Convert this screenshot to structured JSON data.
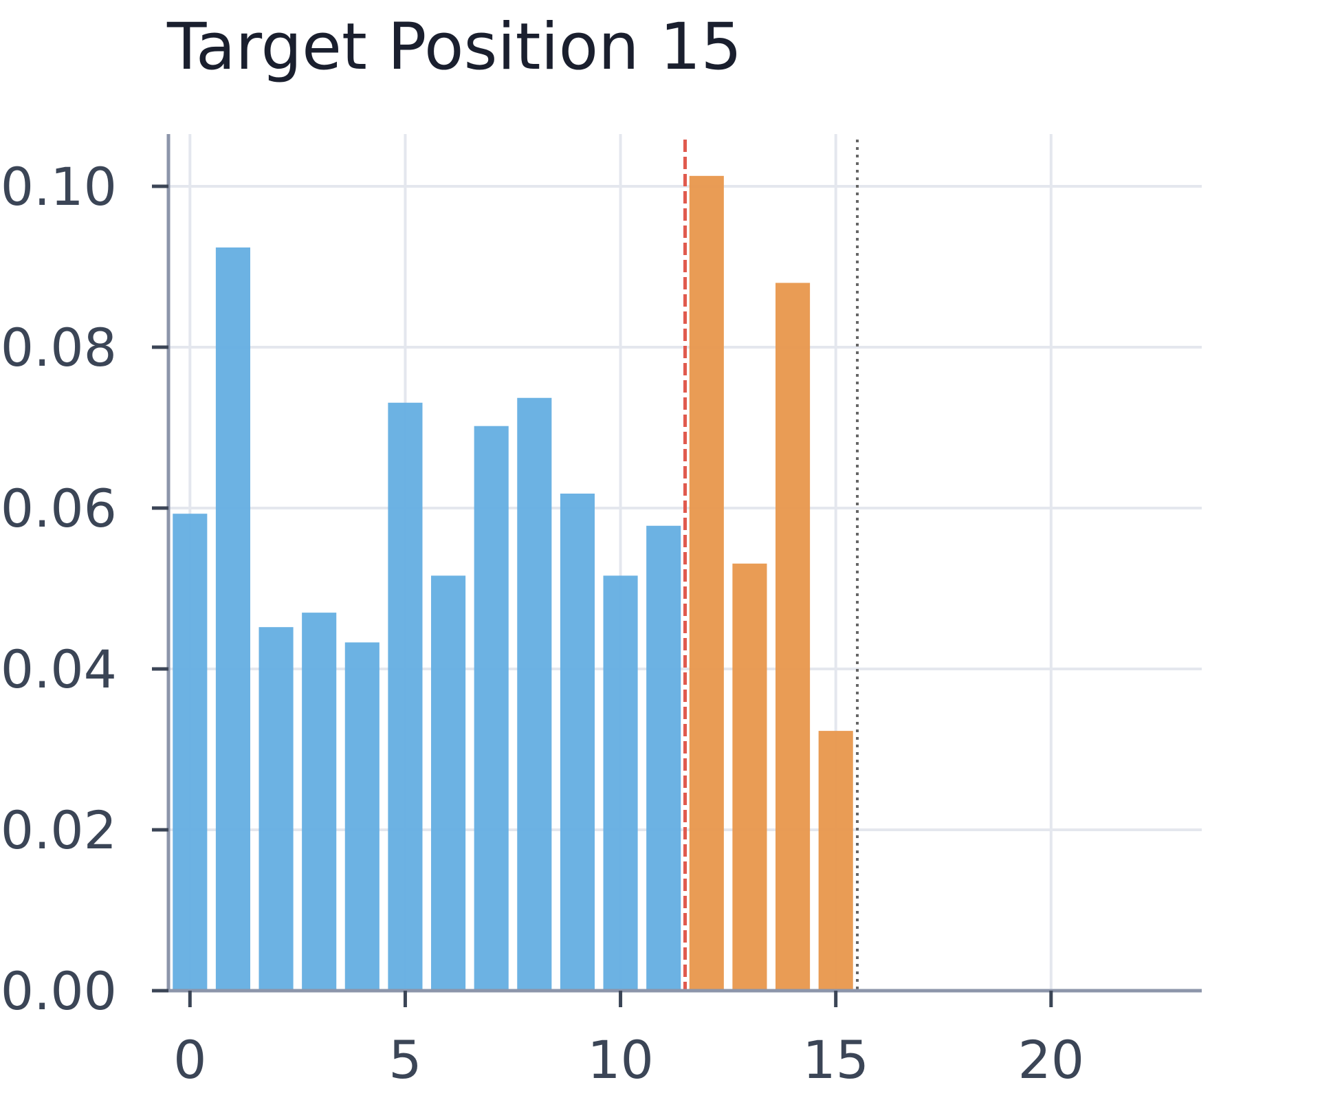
{
  "chart_data": {
    "type": "bar",
    "title": "Target Position 15",
    "xlabel": "",
    "ylabel": "",
    "x": [
      0,
      1,
      2,
      3,
      4,
      5,
      6,
      7,
      8,
      9,
      10,
      11,
      12,
      13,
      14,
      15
    ],
    "values": [
      0.0593,
      0.0924,
      0.0452,
      0.047,
      0.0433,
      0.0731,
      0.0516,
      0.0702,
      0.0737,
      0.0618,
      0.0516,
      0.0578,
      0.1013,
      0.0531,
      0.088,
      0.0323
    ],
    "bar_colors": [
      "#64aee1",
      "#64aee1",
      "#64aee1",
      "#64aee1",
      "#64aee1",
      "#64aee1",
      "#64aee1",
      "#64aee1",
      "#64aee1",
      "#64aee1",
      "#64aee1",
      "#64aee1",
      "#e8974c",
      "#e8974c",
      "#e8974c",
      "#e8974c"
    ],
    "xlim": [
      -0.5,
      23.5
    ],
    "ylim": [
      0,
      0.1065
    ],
    "x_ticks": [
      0,
      5,
      10,
      15,
      20
    ],
    "x_tick_labels": [
      "0",
      "5",
      "10",
      "15",
      "20"
    ],
    "y_ticks": [
      0,
      0.02,
      0.04,
      0.06,
      0.08,
      0.1
    ],
    "y_tick_labels": [
      "0.00",
      "0.02",
      "0.04",
      "0.06",
      "0.08",
      "0.10"
    ],
    "grid": true,
    "reference_lines": [
      {
        "x": 11.5,
        "style": "dashed",
        "color": "#e05a4e"
      },
      {
        "x": 15.5,
        "style": "dotted",
        "color": "#666666"
      }
    ],
    "colors": {
      "blue_bars": "#64aee1",
      "orange_bars": "#e8974c",
      "grid": "#e4e7ee",
      "axis": "#8c95aa"
    }
  }
}
